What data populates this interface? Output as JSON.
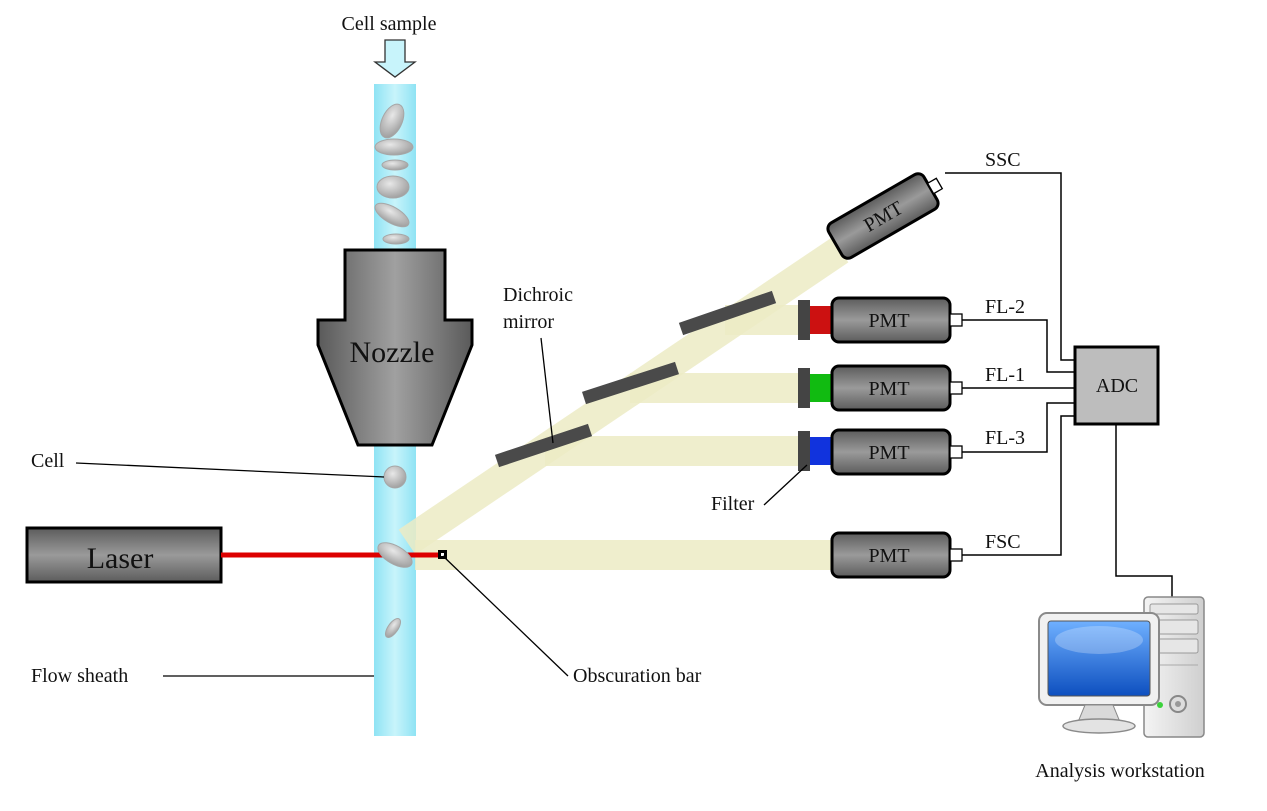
{
  "labels": {
    "cell_sample": "Cell sample",
    "nozzle": "Nozzle",
    "cell": "Cell",
    "laser": "Laser",
    "flow_sheath": "Flow sheath",
    "obscuration_bar": "Obscuration bar",
    "dichroic_mirror_line1": "Dichroic",
    "dichroic_mirror_line2": "mirror",
    "filter": "Filter",
    "adc": "ADC",
    "analysis_workstation": "Analysis workstation"
  },
  "detectors": [
    {
      "id": "ssc",
      "pmt_label": "PMT",
      "channel": "SSC"
    },
    {
      "id": "fl2",
      "pmt_label": "PMT",
      "channel": "FL-2",
      "filter_color": "#cc1111"
    },
    {
      "id": "fl1",
      "pmt_label": "PMT",
      "channel": "FL-1",
      "filter_color": "#11bb11"
    },
    {
      "id": "fl3",
      "pmt_label": "PMT",
      "channel": "FL-3",
      "filter_color": "#1133dd"
    },
    {
      "id": "fsc",
      "pmt_label": "PMT",
      "channel": "FSC"
    }
  ],
  "colors": {
    "sheath": "#a6eaf7",
    "laser_beam": "#dd0000",
    "light_beam": "#ecebc4",
    "device_gray": "#7a7a7a",
    "adc_fill": "#bdbdbd",
    "monitor_screen": "#1f6fe0"
  }
}
